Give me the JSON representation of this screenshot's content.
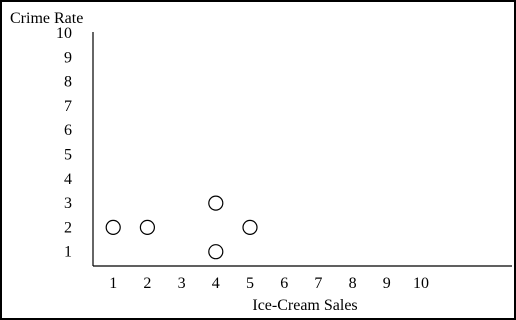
{
  "chart_data": {
    "type": "scatter",
    "title": "",
    "xlabel": "Ice-Cream Sales",
    "ylabel": "Crime Rate",
    "x_ticks": [
      "1",
      "2",
      "3",
      "4",
      "5",
      "6",
      "7",
      "8",
      "9",
      "10"
    ],
    "y_ticks": [
      "1",
      "2",
      "3",
      "4",
      "5",
      "6",
      "7",
      "8",
      "9",
      "10"
    ],
    "xlim": [
      0.4,
      12
    ],
    "ylim": [
      0.5,
      10.5
    ],
    "grid": false,
    "points": [
      {
        "x": 1,
        "y": 2
      },
      {
        "x": 2,
        "y": 2
      },
      {
        "x": 4,
        "y": 3
      },
      {
        "x": 4,
        "y": 1
      },
      {
        "x": 5,
        "y": 2
      }
    ],
    "marker": "open-circle",
    "colors": {
      "ink": "#000000",
      "background": "#ffffff"
    }
  }
}
